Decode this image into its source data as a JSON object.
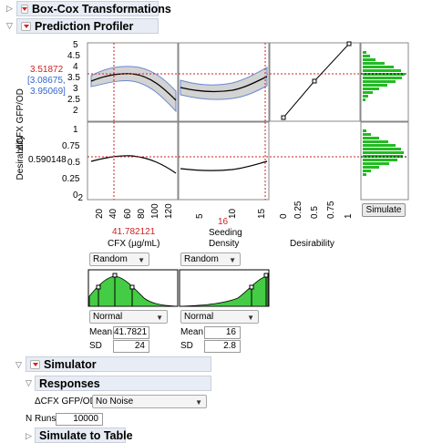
{
  "outlines": {
    "boxcox": "Box-Cox Transformations",
    "profiler": "Prediction Profiler",
    "simulator": "Simulator",
    "responses": "Responses",
    "simulate_to_table": "Simulate to Table"
  },
  "profiler": {
    "response_label": "ΔCFX GFP/OD",
    "response_value": "3.51872",
    "response_ci": [
      "[3.08675,",
      "3.95069]"
    ],
    "desirability_label": "Desirability",
    "desirability_value": "0.590148",
    "y_ticks_top": [
      "2",
      "2.5",
      "3",
      "3.5",
      "4",
      "4.5",
      "5"
    ],
    "y_ticks_bottom": [
      "0",
      "0.25",
      "0.5",
      "0.75",
      "1"
    ],
    "factors": [
      {
        "name": "CFX (µg/mL)",
        "value": "41.782121",
        "ticks": [
          "20",
          "40",
          "60",
          "80",
          "100",
          "120"
        ]
      },
      {
        "name_lines": [
          "Seeding",
          "Density"
        ],
        "value": "16",
        "ticks": [
          "5",
          "10",
          "15"
        ]
      }
    ],
    "desirability_axis_label": "Desirability",
    "desirability_ticks": [
      "0",
      "0.25",
      "0.5",
      "0.75",
      "1"
    ],
    "simulate_button": "Simulate",
    "colors": {
      "value_red": "#cc2222",
      "ci_blue": "#3366cc",
      "band": "#d3d3d3",
      "hist_green": "#22bb22"
    }
  },
  "simulator_inputs": [
    {
      "mode": "Random",
      "dist": "Normal",
      "mean_label": "Mean",
      "mean": "41.7821",
      "sd_label": "SD",
      "sd": "24"
    },
    {
      "mode": "Random",
      "dist": "Normal",
      "mean_label": "Mean",
      "mean": "16",
      "sd_label": "SD",
      "sd": "2.8"
    }
  ],
  "responses": {
    "row_label": "ΔCFX GFP/OD",
    "noise": "No Noise"
  },
  "n_runs": {
    "label": "N Runs:",
    "value": "10000"
  }
}
